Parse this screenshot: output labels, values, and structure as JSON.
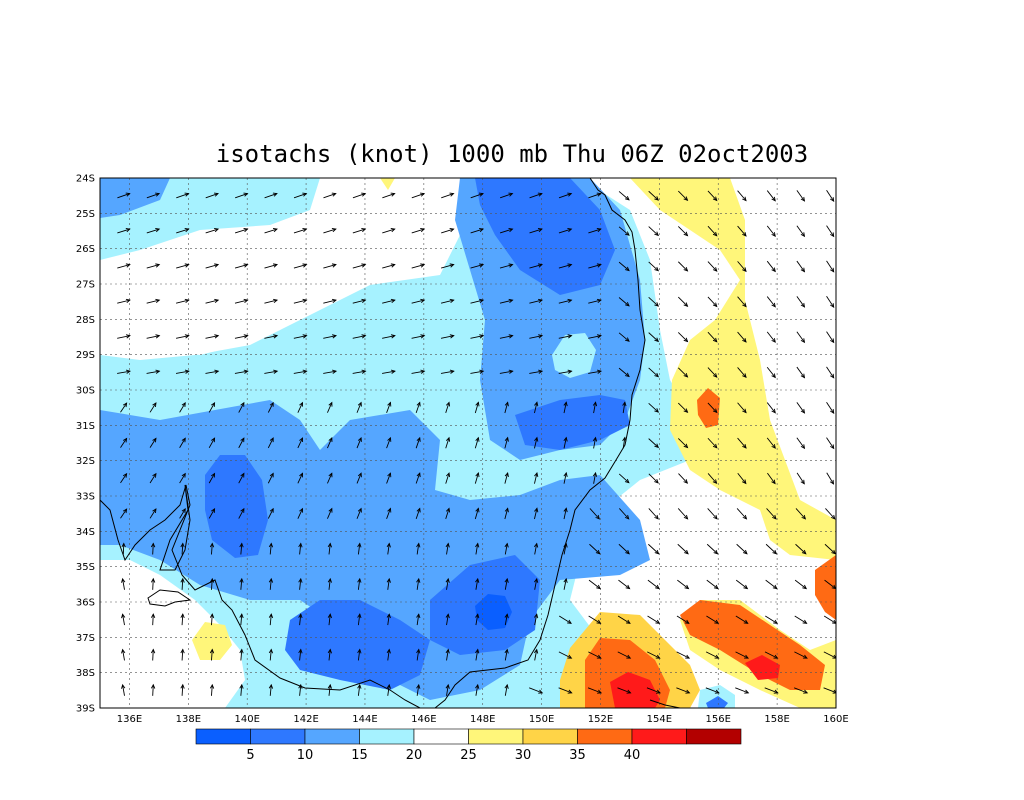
{
  "title": "isotachs (knot) 1000 mb Thu 06Z 02oct2003",
  "lat_labels": [
    "24S",
    "25S",
    "26S",
    "27S",
    "28S",
    "29S",
    "30S",
    "31S",
    "32S",
    "33S",
    "34S",
    "35S",
    "36S",
    "37S",
    "38S",
    "39S"
  ],
  "lon_labels": [
    "136E",
    "138E",
    "140E",
    "142E",
    "144E",
    "146E",
    "148E",
    "150E",
    "152E",
    "154E",
    "156E",
    "158E",
    "160E"
  ],
  "colorbar": {
    "colors": [
      "#0a5fff",
      "#2e78ff",
      "#55a6ff",
      "#a6f2ff",
      "#ffffff",
      "#fff67a",
      "#ffd447",
      "#ff6a14",
      "#ff1a1a",
      "#b30000"
    ],
    "labels": [
      "5",
      "10",
      "15",
      "20",
      "25",
      "30",
      "35",
      "40"
    ]
  },
  "chart_data": {
    "type": "heatmap",
    "title": "isotachs (knot) 1000 mb Thu 06Z 02oct2003",
    "variable": "isotachs (knot)",
    "level": "1000 mb",
    "time": "Thu 06Z 02oct2003",
    "lon_range": [
      135,
      160
    ],
    "lat_range": [
      -39,
      -24
    ],
    "contour_levels": [
      5,
      10,
      15,
      20,
      25,
      30,
      35,
      40
    ],
    "grid": true,
    "features": [
      {
        "name": "core",
        "lon": 148.6,
        "lat": -36.3,
        "speed": 4
      },
      {
        "name": "max",
        "lon": 153.2,
        "lat": -38.5,
        "speed": 37
      },
      {
        "name": "max",
        "lon": 157.8,
        "lat": -37.8,
        "speed": 32
      },
      {
        "name": "max",
        "lon": 159.8,
        "lat": -35.4,
        "speed": 32
      },
      {
        "name": "max",
        "lon": 155.7,
        "lat": -30.5,
        "speed": 31
      },
      {
        "name": "min",
        "lon": 150.9,
        "lat": -29.0,
        "speed": 17
      }
    ]
  }
}
